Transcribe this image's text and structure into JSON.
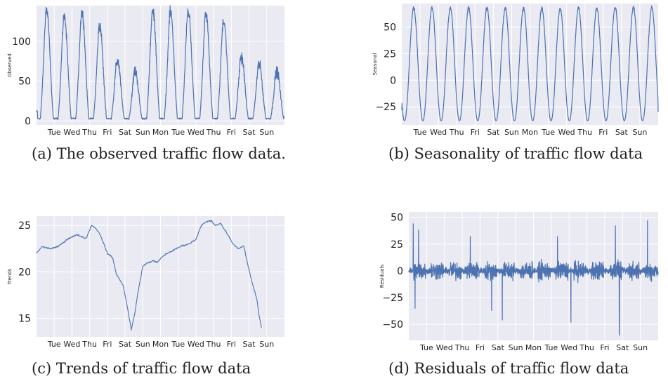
{
  "captions": {
    "a": "(a) The observed traffic flow data.",
    "b": "(b) Seasonality of traffic flow data",
    "c": "(c) Trends of traffic flow data",
    "d": "(d) Residuals of traffic flow data"
  },
  "chart_data": [
    {
      "id": "a",
      "type": "line",
      "ylabel": "Observed",
      "xticklabels": [
        "Tue",
        "Wed",
        "Thu",
        "Fri",
        "Sat",
        "Sun",
        "Mon",
        "Tue",
        "Wed",
        "Thu",
        "Fri",
        "Sat",
        "Sun"
      ],
      "yticks": [
        0,
        50,
        100
      ],
      "ylim": [
        -5,
        145
      ],
      "days": 14,
      "daily_peaks": [
        138,
        130,
        135,
        118,
        75,
        62,
        138,
        135,
        136,
        132,
        125,
        80,
        70,
        62
      ],
      "start_value": 12,
      "end_value": 5,
      "color": "#4c72b0",
      "background": "#eaeaf2",
      "grid": true
    },
    {
      "id": "b",
      "type": "line",
      "ylabel": "Seasonal",
      "xticklabels": [
        "Tue",
        "Wed",
        "Thu",
        "Fri",
        "Sat",
        "Sun",
        "Mon",
        "Tue",
        "Wed",
        "Thu",
        "Fri",
        "Sat",
        "Sun"
      ],
      "yticks": [
        -25,
        0,
        25,
        50
      ],
      "ylim": [
        -42,
        72
      ],
      "days": 14,
      "seasonal_min": -38,
      "seasonal_max": 68,
      "start_value": -28,
      "end_value": -30,
      "color": "#4c72b0",
      "background": "#eaeaf2",
      "grid": true
    },
    {
      "id": "c",
      "type": "line",
      "ylabel": "Trends",
      "xticklabels": [
        "Tue",
        "Wed",
        "Thu",
        "Fri",
        "Sat",
        "Sun",
        "Mon",
        "Tue",
        "Wed",
        "Thu",
        "Fri",
        "Sat",
        "Sun"
      ],
      "yticks": [
        15,
        20,
        25
      ],
      "ylim": [
        13,
        26
      ],
      "x": [
        0,
        0.3,
        0.8,
        1.2,
        1.8,
        2.3,
        2.8,
        3.1,
        3.3,
        3.6,
        4.0,
        4.3,
        4.5,
        4.9,
        5.1,
        5.35,
        5.55,
        5.7,
        6.0,
        6.3,
        6.6,
        6.8,
        7.2,
        7.6,
        7.9,
        8.2,
        8.6,
        9.0,
        9.3,
        9.6,
        9.85,
        10.1,
        10.4,
        10.8,
        11.1,
        11.4,
        11.7,
        11.9,
        12.15,
        12.45,
        12.55,
        12.7
      ],
      "values": [
        22.0,
        22.7,
        22.5,
        22.7,
        23.6,
        24.0,
        23.6,
        25.0,
        24.8,
        24.0,
        22.0,
        21.5,
        19.8,
        18.5,
        16.5,
        13.8,
        15.5,
        17.5,
        20.6,
        21.0,
        21.2,
        21.0,
        21.8,
        22.2,
        22.5,
        22.8,
        23.0,
        23.5,
        25.0,
        25.4,
        25.5,
        25.0,
        25.2,
        24.0,
        23.0,
        22.5,
        22.8,
        21.0,
        19.0,
        17.0,
        15.5,
        14.0
      ],
      "color": "#4c72b0",
      "background": "#eaeaf2",
      "grid": true
    },
    {
      "id": "d",
      "type": "line",
      "ylabel": "Residuals",
      "xticklabels": [
        "Tue",
        "Wed",
        "Thu",
        "Fri",
        "Sat",
        "Sun",
        "Mon",
        "Tue",
        "Wed",
        "Thu",
        "Fri",
        "Sat",
        "Sun"
      ],
      "yticks": [
        -50,
        -25,
        0,
        25,
        50
      ],
      "ylim": [
        -65,
        55
      ],
      "days": 14,
      "noise_amplitude": 12,
      "spikes": [
        {
          "day": 0.25,
          "value": 44
        },
        {
          "day": 0.35,
          "value": -35
        },
        {
          "day": 0.55,
          "value": 38
        },
        {
          "day": 3.45,
          "value": 32
        },
        {
          "day": 4.65,
          "value": -37
        },
        {
          "day": 5.25,
          "value": -46
        },
        {
          "day": 8.35,
          "value": 32
        },
        {
          "day": 9.1,
          "value": -48
        },
        {
          "day": 11.6,
          "value": 42
        },
        {
          "day": 11.82,
          "value": -60
        },
        {
          "day": 13.4,
          "value": 47
        }
      ],
      "color": "#4c72b0",
      "background": "#eaeaf2",
      "grid": true
    }
  ]
}
